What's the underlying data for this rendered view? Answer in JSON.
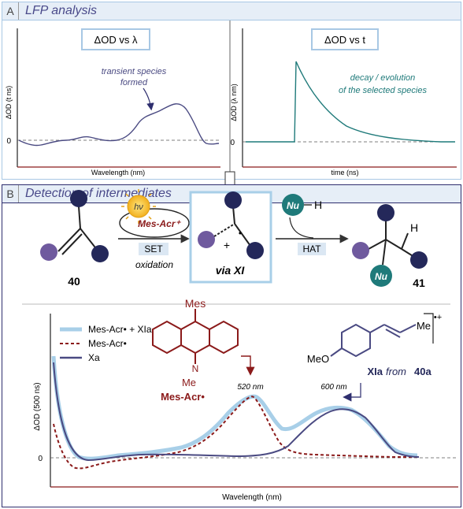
{
  "panel_a": {
    "letter": "A",
    "title": "LFP analysis",
    "left_box": "ΔOD vs λ",
    "left_ylabel": "ΔOD (t ns)",
    "left_zero": "0",
    "left_annotation_line1": "transient species",
    "left_annotation_line2": "formed",
    "left_xlabel": "Wavelength (nm)",
    "right_box": "ΔOD vs t",
    "right_ylabel": "ΔOD (λ nm)",
    "right_zero": "0",
    "right_annotation_line1": "decay / evolution",
    "right_annotation_line2": "of the selected species",
    "right_xlabel": "time (ns)"
  },
  "panel_b": {
    "letter": "B",
    "title": "Detection of intermediates",
    "reactant_label": "40",
    "photocat_symbol": "hν",
    "photocat_label": "Mes-Acr⁺",
    "set_label": "SET",
    "oxidation_label": "oxidation",
    "via_label": "via XI",
    "nu_label": "Nu",
    "h_label": "H",
    "hat_label": "HAT",
    "product_label": "41",
    "product_h": "H",
    "product_nu": "Nu",
    "intermediate_plus": "+",
    "intermediate_dot": "•"
  },
  "chart": {
    "ylabel": "ΔOD (500 ns)",
    "zero_label": "0",
    "xlabel": "Wavelength (nm)",
    "legend": [
      "Mes-Acr• + XIa",
      "Mes-Acr•",
      "Xa"
    ],
    "mes_label": "Mes",
    "me_label": "Me",
    "n_label": "N",
    "acr_name": "Mes-Acr•",
    "peak_520": "520 nm",
    "peak_600": "600 nm",
    "meo_label": "MeO",
    "me_right": "Me",
    "charge_label": "•+",
    "xia_label": "XIa",
    "from_label": "from",
    "from_compound": "40a"
  },
  "colors": {
    "light_blue": "#a8cfe8",
    "dark_red": "#8b1a1a",
    "navy": "#4a4a82",
    "teal": "#1f7a7a",
    "purple_ball": "#6f5a9e",
    "navy_ball": "#24285a"
  }
}
